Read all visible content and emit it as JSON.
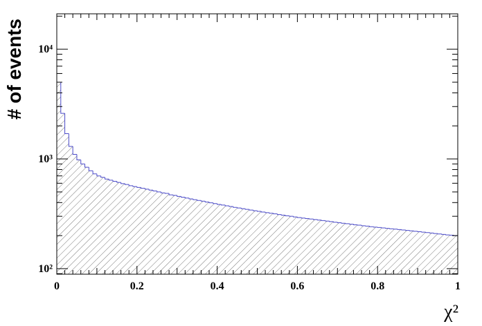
{
  "chart_data": {
    "type": "histogram",
    "xlabel": "χ²",
    "ylabel": "# of events",
    "bins": [
      0,
      0.01,
      0.02,
      0.03,
      0.04,
      0.05,
      0.06,
      0.07,
      0.08,
      0.09,
      0.1,
      0.11,
      0.12,
      0.13,
      0.14,
      0.15,
      0.16,
      0.17,
      0.18,
      0.19,
      0.2,
      0.21,
      0.22,
      0.23,
      0.24,
      0.25,
      0.26,
      0.27,
      0.28,
      0.29,
      0.3,
      0.31,
      0.32,
      0.33,
      0.34,
      0.35,
      0.36,
      0.37,
      0.38,
      0.39,
      0.4,
      0.41,
      0.42,
      0.43,
      0.44,
      0.45,
      0.46,
      0.47,
      0.48,
      0.49,
      0.5,
      0.51,
      0.52,
      0.53,
      0.54,
      0.55,
      0.56,
      0.57,
      0.58,
      0.59,
      0.6,
      0.61,
      0.62,
      0.63,
      0.64,
      0.65,
      0.66,
      0.67,
      0.68,
      0.69,
      0.7,
      0.71,
      0.72,
      0.73,
      0.74,
      0.75,
      0.76,
      0.77,
      0.78,
      0.79,
      0.8,
      0.81,
      0.82,
      0.83,
      0.84,
      0.85,
      0.86,
      0.87,
      0.88,
      0.89,
      0.9,
      0.91,
      0.92,
      0.93,
      0.94,
      0.95,
      0.96,
      0.97,
      0.98,
      0.99,
      1
    ],
    "values": [
      5000,
      2600,
      1700,
      1300,
      1100,
      980,
      900,
      840,
      780,
      730,
      700,
      680,
      655,
      640,
      625,
      610,
      595,
      585,
      570,
      560,
      550,
      540,
      530,
      520,
      510,
      500,
      490,
      485,
      470,
      465,
      455,
      448,
      440,
      432,
      425,
      418,
      412,
      405,
      398,
      392,
      385,
      380,
      374,
      368,
      362,
      357,
      352,
      347,
      342,
      337,
      333,
      328,
      324,
      320,
      316,
      311,
      307,
      303,
      300,
      296,
      292,
      289,
      286,
      283,
      280,
      277,
      274,
      271,
      268,
      265,
      262,
      259,
      257,
      254,
      251,
      249,
      246,
      244,
      241,
      239,
      237,
      235,
      233,
      231,
      229,
      227,
      225,
      223,
      221,
      219,
      217,
      215,
      213,
      211,
      209,
      207,
      205,
      203,
      202,
      200
    ],
    "color": "#4a4ac8",
    "xlim": [
      0,
      1
    ],
    "xticks": [
      0,
      0.2,
      0.4,
      0.6,
      0.8,
      1
    ],
    "ylim": [
      89,
      21000
    ],
    "log_y": true,
    "yticks": [
      {
        "value": 100,
        "label": "10²"
      },
      {
        "value": 1000,
        "label": "10³"
      },
      {
        "value": 10000,
        "label": "10⁴"
      }
    ]
  }
}
